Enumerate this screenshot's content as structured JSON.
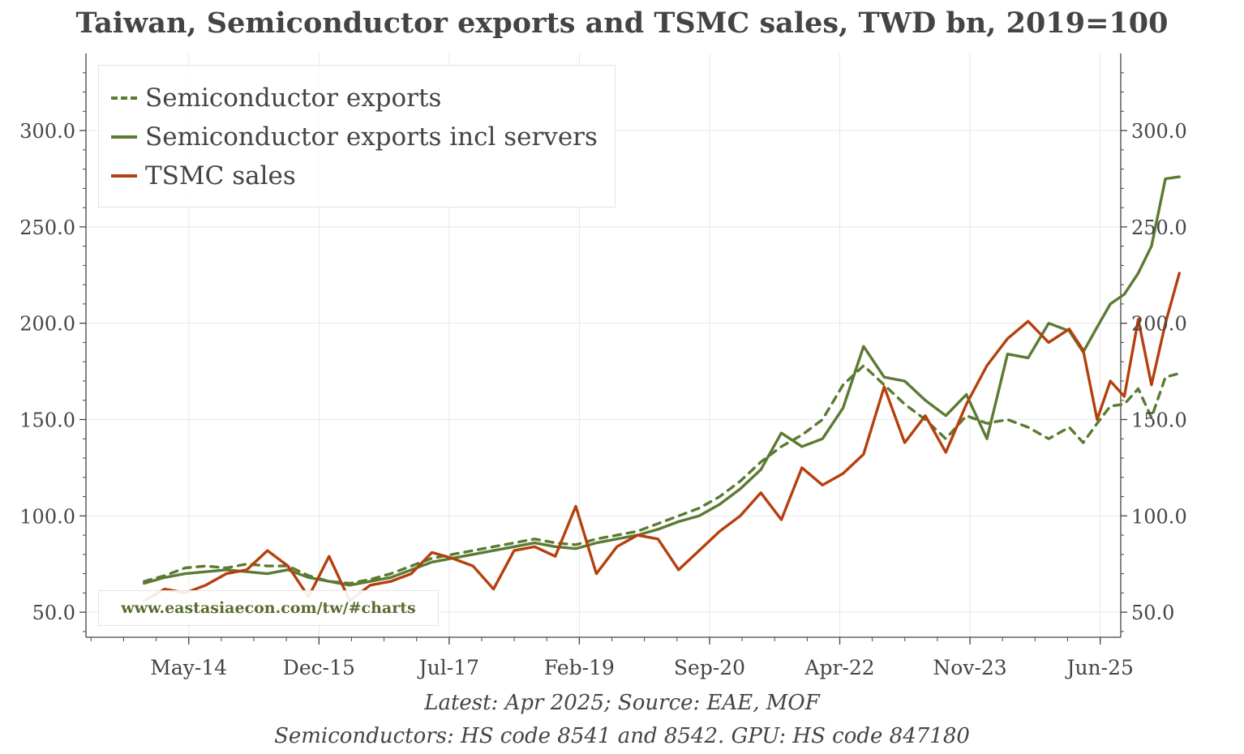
{
  "chart_data": {
    "type": "line",
    "title": "Taiwan, Semiconductor exports and TSMC sales, TWD bn, 2019=100",
    "xlabel": "",
    "ylabel": "",
    "x_start": "2013-10",
    "x_end": "2025-04",
    "xlim": [
      "2013-02",
      "2025-09"
    ],
    "x_tick_labels": [
      "May-14",
      "Dec-15",
      "Jul-17",
      "Feb-19",
      "Sep-20",
      "Apr-22",
      "Nov-23",
      "Jun-25"
    ],
    "ylim": [
      37,
      340
    ],
    "y_ticks": [
      50.0,
      100.0,
      150.0,
      200.0,
      250.0,
      300.0
    ],
    "y_tick_labels": [
      "50.0",
      "100.0",
      "150.0",
      "200.0",
      "250.0",
      "300.0"
    ],
    "grid": true,
    "legend_position": "top-left",
    "series": [
      {
        "name": "Semiconductor exports",
        "color": "#5b7a32",
        "style": "dashed",
        "values": [
          [
            2013.79,
            66
          ],
          [
            2014.04,
            69
          ],
          [
            2014.29,
            73
          ],
          [
            2014.54,
            74
          ],
          [
            2014.79,
            73
          ],
          [
            2015.04,
            75
          ],
          [
            2015.29,
            74
          ],
          [
            2015.54,
            74
          ],
          [
            2015.79,
            69
          ],
          [
            2016.04,
            66
          ],
          [
            2016.29,
            65
          ],
          [
            2016.54,
            67
          ],
          [
            2016.79,
            70
          ],
          [
            2017.04,
            74
          ],
          [
            2017.29,
            78
          ],
          [
            2017.54,
            80
          ],
          [
            2017.79,
            82
          ],
          [
            2018.04,
            84
          ],
          [
            2018.29,
            86
          ],
          [
            2018.54,
            88
          ],
          [
            2018.79,
            86
          ],
          [
            2019.04,
            85
          ],
          [
            2019.29,
            88
          ],
          [
            2019.54,
            90
          ],
          [
            2019.79,
            92
          ],
          [
            2020.04,
            96
          ],
          [
            2020.29,
            100
          ],
          [
            2020.54,
            104
          ],
          [
            2020.79,
            110
          ],
          [
            2021.04,
            118
          ],
          [
            2021.29,
            128
          ],
          [
            2021.54,
            136
          ],
          [
            2021.79,
            142
          ],
          [
            2022.04,
            150
          ],
          [
            2022.29,
            168
          ],
          [
            2022.54,
            178
          ],
          [
            2022.79,
            168
          ],
          [
            2023.04,
            158
          ],
          [
            2023.29,
            150
          ],
          [
            2023.54,
            140
          ],
          [
            2023.79,
            152
          ],
          [
            2024.04,
            148
          ],
          [
            2024.29,
            150
          ],
          [
            2024.54,
            146
          ],
          [
            2024.79,
            140
          ],
          [
            2025.04,
            146
          ],
          [
            2025.21,
            138
          ],
          [
            2025.38,
            148
          ],
          [
            2025.54,
            157
          ],
          [
            2025.71,
            158
          ],
          [
            2025.88,
            166
          ],
          [
            2026.04,
            151
          ],
          [
            2026.21,
            172
          ],
          [
            2026.38,
            174
          ]
        ]
      },
      {
        "name": "Semiconductor exports incl servers",
        "color": "#5b7a32",
        "style": "solid",
        "values": [
          [
            2013.79,
            65
          ],
          [
            2014.04,
            68
          ],
          [
            2014.29,
            70
          ],
          [
            2014.54,
            71
          ],
          [
            2014.79,
            72
          ],
          [
            2015.04,
            71
          ],
          [
            2015.29,
            70
          ],
          [
            2015.54,
            72
          ],
          [
            2015.79,
            68
          ],
          [
            2016.04,
            66
          ],
          [
            2016.29,
            64
          ],
          [
            2016.54,
            66
          ],
          [
            2016.79,
            68
          ],
          [
            2017.04,
            72
          ],
          [
            2017.29,
            76
          ],
          [
            2017.54,
            78
          ],
          [
            2017.79,
            80
          ],
          [
            2018.04,
            82
          ],
          [
            2018.29,
            84
          ],
          [
            2018.54,
            86
          ],
          [
            2018.79,
            84
          ],
          [
            2019.04,
            83
          ],
          [
            2019.29,
            86
          ],
          [
            2019.54,
            88
          ],
          [
            2019.79,
            90
          ],
          [
            2020.04,
            93
          ],
          [
            2020.29,
            97
          ],
          [
            2020.54,
            100
          ],
          [
            2020.79,
            106
          ],
          [
            2021.04,
            114
          ],
          [
            2021.29,
            124
          ],
          [
            2021.54,
            143
          ],
          [
            2021.79,
            136
          ],
          [
            2022.04,
            140
          ],
          [
            2022.29,
            156
          ],
          [
            2022.54,
            188
          ],
          [
            2022.79,
            172
          ],
          [
            2023.04,
            170
          ],
          [
            2023.29,
            160
          ],
          [
            2023.54,
            152
          ],
          [
            2023.79,
            163
          ],
          [
            2024.04,
            140
          ],
          [
            2024.29,
            184
          ],
          [
            2024.54,
            182
          ],
          [
            2024.79,
            200
          ],
          [
            2025.04,
            196
          ],
          [
            2025.21,
            185
          ],
          [
            2025.38,
            198
          ],
          [
            2025.54,
            210
          ],
          [
            2025.71,
            215
          ],
          [
            2025.88,
            226
          ],
          [
            2026.04,
            240
          ],
          [
            2026.21,
            275
          ],
          [
            2026.38,
            276
          ]
        ]
      },
      {
        "name": "TSMC sales",
        "color": "#b5400d",
        "style": "solid",
        "values": [
          [
            2013.79,
            56
          ],
          [
            2014.04,
            62
          ],
          [
            2014.29,
            60
          ],
          [
            2014.54,
            64
          ],
          [
            2014.79,
            70
          ],
          [
            2015.04,
            72
          ],
          [
            2015.29,
            82
          ],
          [
            2015.54,
            74
          ],
          [
            2015.79,
            58
          ],
          [
            2016.04,
            79
          ],
          [
            2016.29,
            56
          ],
          [
            2016.54,
            64
          ],
          [
            2016.79,
            66
          ],
          [
            2017.04,
            70
          ],
          [
            2017.29,
            81
          ],
          [
            2017.54,
            78
          ],
          [
            2017.79,
            74
          ],
          [
            2018.04,
            62
          ],
          [
            2018.29,
            82
          ],
          [
            2018.54,
            84
          ],
          [
            2018.79,
            79
          ],
          [
            2019.04,
            105
          ],
          [
            2019.29,
            70
          ],
          [
            2019.54,
            84
          ],
          [
            2019.79,
            90
          ],
          [
            2020.04,
            88
          ],
          [
            2020.29,
            72
          ],
          [
            2020.54,
            82
          ],
          [
            2020.79,
            92
          ],
          [
            2021.04,
            100
          ],
          [
            2021.29,
            112
          ],
          [
            2021.54,
            98
          ],
          [
            2021.79,
            125
          ],
          [
            2022.04,
            116
          ],
          [
            2022.29,
            122
          ],
          [
            2022.54,
            132
          ],
          [
            2022.79,
            167
          ],
          [
            2023.04,
            138
          ],
          [
            2023.29,
            152
          ],
          [
            2023.54,
            133
          ],
          [
            2023.79,
            158
          ],
          [
            2024.04,
            178
          ],
          [
            2024.29,
            192
          ],
          [
            2024.54,
            201
          ],
          [
            2024.79,
            190
          ],
          [
            2025.04,
            197
          ],
          [
            2025.21,
            186
          ],
          [
            2025.38,
            150
          ],
          [
            2025.54,
            170
          ],
          [
            2025.71,
            162
          ],
          [
            2025.88,
            202
          ],
          [
            2026.04,
            168
          ],
          [
            2026.21,
            200
          ],
          [
            2026.38,
            226
          ]
        ]
      }
    ]
  },
  "legend": {
    "items": [
      {
        "label": "Semiconductor exports",
        "color": "#5b7a32",
        "style": "dashed"
      },
      {
        "label": "Semiconductor exports incl servers",
        "color": "#5b7a32",
        "style": "solid"
      },
      {
        "label": "TSMC sales",
        "color": "#b5400d",
        "style": "solid"
      }
    ]
  },
  "watermark": "www.eastasiaecon.com/tw/#charts",
  "footnotes": {
    "line1": "Latest: Apr 2025; Source: EAE, MOF",
    "line2": "Semiconductors: HS code 8541 and 8542. GPU: HS code 847180"
  },
  "colors": {
    "grid": "#e8e8e8",
    "axis": "#444444",
    "green": "#5b7a32",
    "red": "#b5400d"
  }
}
